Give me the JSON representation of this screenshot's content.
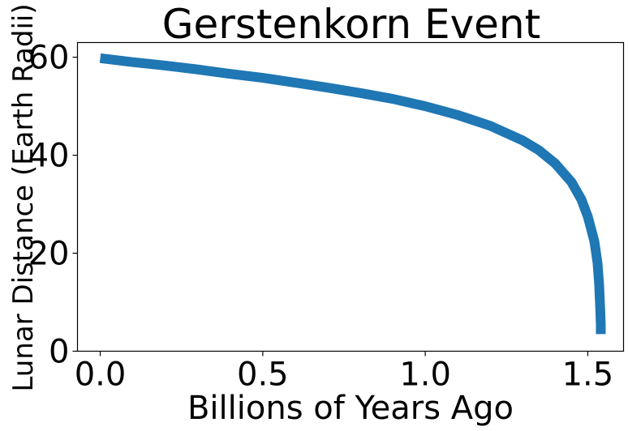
{
  "chart_data": {
    "type": "line",
    "title": "Gerstenkorn Event",
    "xlabel": "Billions of Years Ago",
    "ylabel": "Lunar Distance (Earth Radii)",
    "xlim": [
      -0.07,
      1.61
    ],
    "ylim": [
      0,
      63
    ],
    "xticks": [
      0.0,
      0.5,
      1.0,
      1.5
    ],
    "xtick_labels": [
      "0.0",
      "0.5",
      "1.0",
      "1.5"
    ],
    "yticks": [
      0,
      20,
      40,
      60
    ],
    "ytick_labels": [
      "0",
      "20",
      "40",
      "60"
    ],
    "grid": false,
    "legend": false,
    "series": [
      {
        "color": "#1f77b4",
        "x": [
          0.0,
          0.1,
          0.2,
          0.3,
          0.4,
          0.5,
          0.6,
          0.7,
          0.8,
          0.9,
          1.0,
          1.1,
          1.2,
          1.3,
          1.35,
          1.4,
          1.45,
          1.48,
          1.5,
          1.52,
          1.53,
          1.535,
          1.538,
          1.54,
          1.54
        ],
        "y": [
          59.8,
          59.0,
          58.3,
          57.5,
          56.6,
          55.8,
          54.8,
          53.8,
          52.7,
          51.5,
          50.0,
          48.2,
          46.0,
          43.0,
          41.0,
          38.3,
          34.5,
          31.0,
          27.5,
          22.5,
          18.0,
          13.5,
          9.0,
          5.5,
          3.5
        ]
      }
    ]
  }
}
